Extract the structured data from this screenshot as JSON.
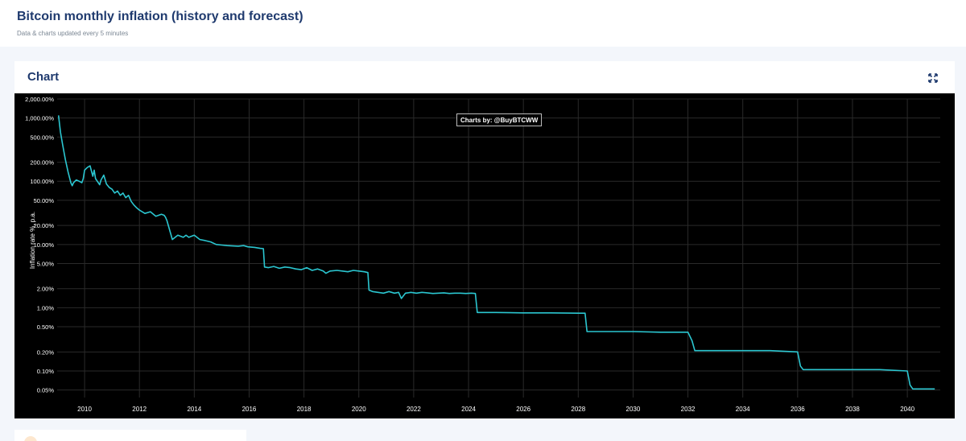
{
  "header": {
    "title": "Bitcoin monthly inflation (history and forecast)",
    "subtitle": "Data & charts updated every 5 minutes"
  },
  "card": {
    "title": "Chart",
    "expand_icon": "expand-arrows-icon"
  },
  "chart_data": {
    "type": "line",
    "yscale": "log",
    "ylabel": "Inflation rate %, p.a.",
    "credit": "Charts by: @BuyBTCWW",
    "background": "#000000",
    "line_color": "#2bc6d0",
    "grid": true,
    "xlim": [
      2009.0,
      2041.2
    ],
    "ylim": [
      0.038,
      2000
    ],
    "y_ticks": [
      {
        "value": 2000,
        "label": "2,000.00%"
      },
      {
        "value": 1000,
        "label": "1,000.00%"
      },
      {
        "value": 500,
        "label": "500.00%"
      },
      {
        "value": 200,
        "label": "200.00%"
      },
      {
        "value": 100,
        "label": "100.00%"
      },
      {
        "value": 50,
        "label": "50.00%"
      },
      {
        "value": 20,
        "label": "20.00%"
      },
      {
        "value": 10,
        "label": "10.00%"
      },
      {
        "value": 5,
        "label": "5.00%"
      },
      {
        "value": 2,
        "label": "2.00%"
      },
      {
        "value": 1,
        "label": "1.00%"
      },
      {
        "value": 0.5,
        "label": "0.50%"
      },
      {
        "value": 0.2,
        "label": "0.20%"
      },
      {
        "value": 0.1,
        "label": "0.10%"
      },
      {
        "value": 0.05,
        "label": "0.05%"
      }
    ],
    "x_ticks": [
      {
        "value": 2010,
        "label": "2010"
      },
      {
        "value": 2012,
        "label": "2012"
      },
      {
        "value": 2014,
        "label": "2014"
      },
      {
        "value": 2016,
        "label": "2016"
      },
      {
        "value": 2018,
        "label": "2018"
      },
      {
        "value": 2020,
        "label": "2020"
      },
      {
        "value": 2022,
        "label": "2022"
      },
      {
        "value": 2024,
        "label": "2024"
      },
      {
        "value": 2026,
        "label": "2026"
      },
      {
        "value": 2028,
        "label": "2028"
      },
      {
        "value": 2030,
        "label": "2030"
      },
      {
        "value": 2032,
        "label": "2032"
      },
      {
        "value": 2034,
        "label": "2034"
      },
      {
        "value": 2036,
        "label": "2036"
      },
      {
        "value": 2038,
        "label": "2038"
      },
      {
        "value": 2040,
        "label": "2040"
      }
    ],
    "series": [
      {
        "x": [
          2009.05,
          2009.12,
          2009.2,
          2009.3,
          2009.4,
          2009.5,
          2009.55,
          2009.6,
          2009.7,
          2009.8,
          2009.9,
          2009.95,
          2010.0,
          2010.1,
          2010.2,
          2010.3,
          2010.35,
          2010.4,
          2010.5,
          2010.55,
          2010.6,
          2010.7,
          2010.8,
          2010.9,
          2011.0,
          2011.1,
          2011.2,
          2011.3,
          2011.4,
          2011.5,
          2011.6,
          2011.7,
          2011.8,
          2011.9,
          2012.0,
          2012.2,
          2012.4,
          2012.6,
          2012.8,
          2012.9,
          2012.95,
          2013.0,
          2013.2,
          2013.4,
          2013.6,
          2013.7,
          2013.8,
          2014.0,
          2014.2,
          2014.4,
          2014.6,
          2014.8,
          2015.0,
          2015.2,
          2015.4,
          2015.6,
          2015.8,
          2015.95,
          2016.2,
          2016.4,
          2016.52,
          2016.56,
          2016.7,
          2016.9,
          2017.1,
          2017.3,
          2017.5,
          2017.7,
          2017.9,
          2018.1,
          2018.3,
          2018.5,
          2018.7,
          2018.8,
          2018.95,
          2019.2,
          2019.4,
          2019.6,
          2019.8,
          2020.0,
          2020.2,
          2020.33,
          2020.37,
          2020.5,
          2020.7,
          2020.9,
          2021.1,
          2021.3,
          2021.45,
          2021.55,
          2021.7,
          2021.9,
          2022.1,
          2022.3,
          2022.5,
          2022.7,
          2022.9,
          2023.1,
          2023.3,
          2023.5,
          2023.7,
          2023.9,
          2024.1,
          2024.25,
          2024.32,
          2025.0,
          2026.0,
          2027.0,
          2028.0,
          2028.25,
          2028.32,
          2029.0,
          2030.0,
          2031.0,
          2032.0,
          2032.15,
          2032.25,
          2033.0,
          2034.0,
          2035.0,
          2036.0,
          2036.1,
          2036.2,
          2037.0,
          2038.0,
          2039.0,
          2040.0,
          2040.1,
          2040.2,
          2041.0
        ],
        "y": [
          1100,
          600,
          380,
          220,
          140,
          95,
          85,
          95,
          105,
          100,
          95,
          110,
          150,
          165,
          175,
          120,
          150,
          110,
          95,
          88,
          105,
          125,
          90,
          80,
          75,
          65,
          70,
          60,
          65,
          55,
          60,
          48,
          42,
          38,
          35,
          31,
          33,
          28,
          30,
          29,
          27,
          24,
          12,
          14,
          13,
          14,
          13,
          14,
          12,
          11.5,
          11,
          10,
          9.8,
          9.6,
          9.5,
          9.4,
          9.6,
          9.2,
          9.0,
          8.7,
          8.6,
          4.4,
          4.3,
          4.5,
          4.2,
          4.4,
          4.3,
          4.1,
          4.0,
          4.3,
          3.9,
          4.1,
          3.8,
          3.5,
          3.8,
          3.9,
          3.8,
          3.7,
          3.9,
          3.8,
          3.7,
          3.6,
          1.9,
          1.8,
          1.75,
          1.7,
          1.8,
          1.7,
          1.75,
          1.4,
          1.7,
          1.75,
          1.7,
          1.75,
          1.72,
          1.68,
          1.7,
          1.72,
          1.68,
          1.7,
          1.7,
          1.68,
          1.7,
          1.68,
          0.84,
          0.84,
          0.83,
          0.83,
          0.82,
          0.82,
          0.42,
          0.42,
          0.42,
          0.41,
          0.41,
          0.3,
          0.21,
          0.21,
          0.21,
          0.21,
          0.2,
          0.12,
          0.105,
          0.105,
          0.105,
          0.105,
          0.1,
          0.06,
          0.052,
          0.052
        ]
      }
    ]
  }
}
